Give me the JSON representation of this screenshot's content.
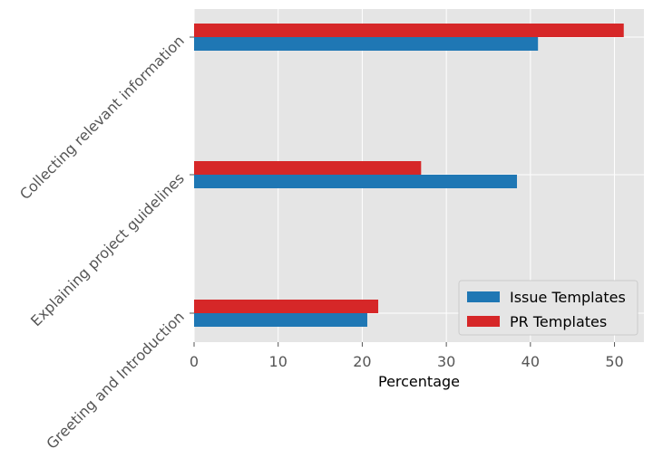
{
  "chart_data": {
    "type": "bar",
    "orientation": "horizontal",
    "categories": [
      "Greeting and Introduction",
      "Explaining project guidelines",
      "Collecting relevant information"
    ],
    "series": [
      {
        "name": "Issue Templates",
        "values": [
          20.6,
          38.4,
          40.9
        ],
        "color": "#1f77b4"
      },
      {
        "name": "PR Templates",
        "values": [
          21.9,
          27.0,
          51.1
        ],
        "color": "#d62728"
      }
    ],
    "xlabel": "Percentage",
    "ylabel": "",
    "xlim": [
      0,
      53.5
    ],
    "xticks": [
      "0",
      "10",
      "20",
      "30",
      "40",
      "50"
    ],
    "grid": true,
    "legend_position": "lower right",
    "background": "#e5e5e5"
  }
}
